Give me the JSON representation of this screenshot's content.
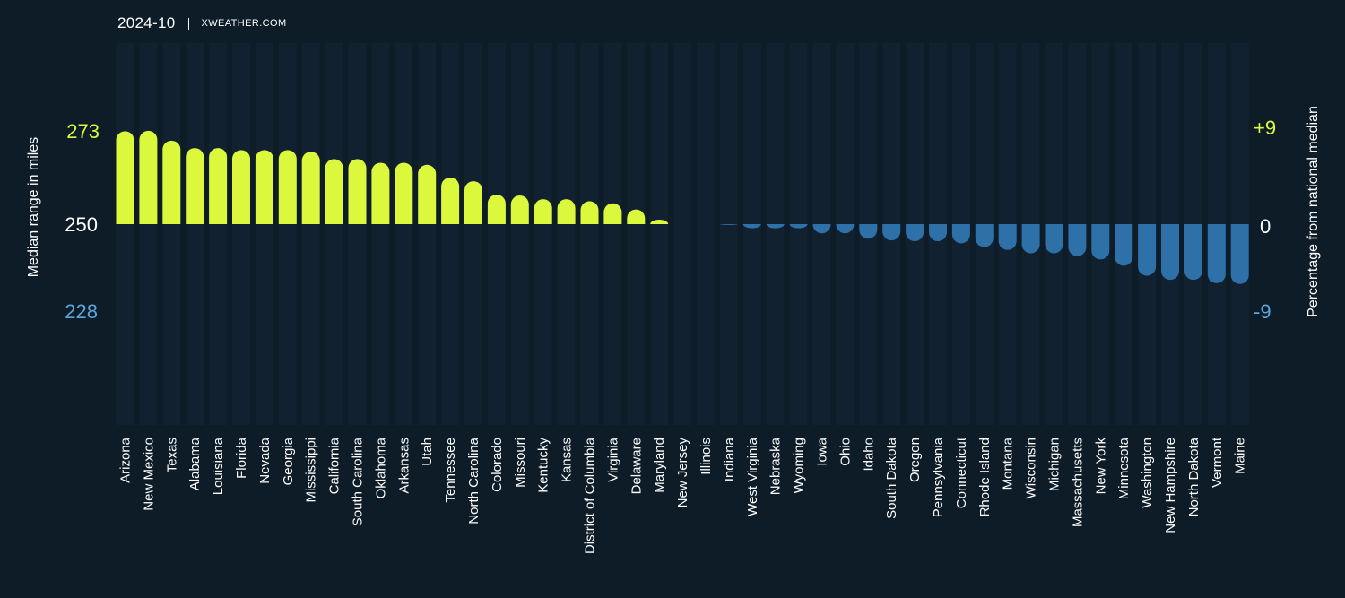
{
  "header": {
    "date": "2024-10",
    "site": "XWEATHER.COM"
  },
  "colors": {
    "background": "#0e1c28",
    "column_band": "#112130",
    "above": "#dcf83c",
    "below": "#2e70a8",
    "left_low_tick": "#5aa7dd"
  },
  "chart_data": {
    "type": "bar",
    "ylabel": "Median range in miles",
    "y2label": "Percentage from national median",
    "left_ticks": [
      "273",
      "250",
      "228"
    ],
    "right_ticks": [
      "+9",
      "0",
      "-9"
    ],
    "baseline": 250,
    "ylim": [
      228,
      273
    ],
    "categories": [
      "Arizona",
      "New Mexico",
      "Texas",
      "Alabama",
      "Louisiana",
      "Florida",
      "Nevada",
      "Georgia",
      "Mississippi",
      "California",
      "South Carolina",
      "Oklahoma",
      "Arkansas",
      "Utah",
      "Tennessee",
      "North Carolina",
      "Colorado",
      "Missouri",
      "Kentucky",
      "Kansas",
      "District of Columbia",
      "Virginia",
      "Delaware",
      "Maryland",
      "New Jersey",
      "Illinois",
      "Indiana",
      "West Virginia",
      "Nebraska",
      "Wyoming",
      "Iowa",
      "Ohio",
      "Idaho",
      "South Dakota",
      "Oregon",
      "Pennsylvania",
      "Connecticut",
      "Rhode Island",
      "Montana",
      "Wisconsin",
      "Michigan",
      "Massachusetts",
      "New York",
      "Minnesota",
      "Washington",
      "New Hampshire",
      "North Dakota",
      "Vermont",
      "Maine"
    ],
    "values": [
      272.7,
      272.8,
      270.4,
      268.6,
      268.6,
      268.1,
      268.1,
      268.1,
      267.7,
      265.9,
      265.9,
      265.0,
      265.0,
      264.5,
      261.4,
      260.5,
      257.2,
      257.0,
      256.1,
      256.1,
      255.6,
      255.1,
      253.6,
      251.1,
      250.0,
      250.0,
      249.8,
      249.0,
      249.0,
      249.0,
      247.8,
      247.8,
      246.5,
      246.1,
      245.9,
      245.9,
      245.4,
      244.5,
      243.8,
      243.0,
      243.0,
      242.3,
      241.5,
      240.0,
      237.6,
      236.6,
      236.6,
      235.8,
      235.6
    ]
  }
}
